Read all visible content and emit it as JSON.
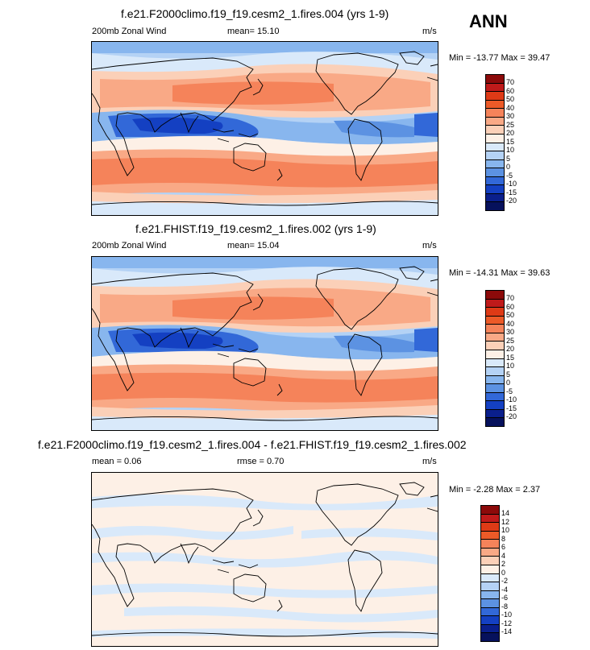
{
  "season": "ANN",
  "panels": [
    {
      "title": "f.e21.F2000climo.f19_f19.cesm2_1.fires.004 (yrs 1-9)",
      "left_label": "200mb Zonal Wind",
      "center_label": "mean=  15.10",
      "units": "m/s",
      "minmax": "Min = -13.77 Max =  39.47"
    },
    {
      "title": "f.e21.FHIST.f19_f19.cesm2_1.fires.002 (yrs 1-9)",
      "left_label": "200mb Zonal Wind",
      "center_label": "mean=  15.04",
      "units": "m/s",
      "minmax": "Min = -14.31 Max =  39.63"
    },
    {
      "title": "f.e21.F2000climo.f19_f19.cesm2_1.fires.004 - f.e21.FHIST.f19_f19.cesm2_1.fires.002",
      "left_label": "mean =  0.06",
      "center_label": "rmse =  0.70",
      "units": "m/s",
      "minmax": "Min =  -2.28 Max =   2.37"
    }
  ],
  "chart_data": [
    {
      "type": "heatmap",
      "variable": "200mb Zonal Wind",
      "units": "m/s",
      "mean": 15.1,
      "min": -13.77,
      "max": 39.47,
      "colorbar_levels": [
        "70",
        "60",
        "50",
        "40",
        "30",
        "25",
        "20",
        "15",
        "10",
        "5",
        "0",
        "-5",
        "-10",
        "-15",
        "-20"
      ],
      "colorbar_colors": [
        "#8c0a0a",
        "#bf1a1a",
        "#de3a16",
        "#ec5a28",
        "#f5835a",
        "#f9a986",
        "#fbd0b8",
        "#fdf0e6",
        "#d9e9fa",
        "#b4d2f5",
        "#88b6ee",
        "#5c92e2",
        "#3268d8",
        "#1440c2",
        "#0a1f8c",
        "#06115c"
      ],
      "lat_profile": [
        [
          90,
          8
        ],
        [
          75,
          10
        ],
        [
          60,
          14
        ],
        [
          50,
          22
        ],
        [
          40,
          28
        ],
        [
          33,
          30
        ],
        [
          25,
          22
        ],
        [
          15,
          5
        ],
        [
          5,
          -6
        ],
        [
          0,
          -8
        ],
        [
          -5,
          -4
        ],
        [
          -15,
          10
        ],
        [
          -25,
          28
        ],
        [
          -32,
          35
        ],
        [
          -40,
          32
        ],
        [
          -50,
          22
        ],
        [
          -60,
          12
        ],
        [
          -75,
          6
        ],
        [
          -90,
          4
        ]
      ]
    },
    {
      "type": "heatmap",
      "variable": "200mb Zonal Wind",
      "units": "m/s",
      "mean": 15.04,
      "min": -14.31,
      "max": 39.63,
      "colorbar_levels": [
        "70",
        "60",
        "50",
        "40",
        "30",
        "25",
        "20",
        "15",
        "10",
        "5",
        "0",
        "-5",
        "-10",
        "-15",
        "-20"
      ],
      "colorbar_colors": [
        "#8c0a0a",
        "#bf1a1a",
        "#de3a16",
        "#ec5a28",
        "#f5835a",
        "#f9a986",
        "#fbd0b8",
        "#fdf0e6",
        "#d9e9fa",
        "#b4d2f5",
        "#88b6ee",
        "#5c92e2",
        "#3268d8",
        "#1440c2",
        "#0a1f8c",
        "#06115c"
      ],
      "lat_profile": [
        [
          90,
          8
        ],
        [
          75,
          10
        ],
        [
          60,
          14
        ],
        [
          50,
          22
        ],
        [
          40,
          28
        ],
        [
          33,
          30
        ],
        [
          25,
          22
        ],
        [
          15,
          5
        ],
        [
          5,
          -6
        ],
        [
          0,
          -8
        ],
        [
          -5,
          -4
        ],
        [
          -15,
          10
        ],
        [
          -25,
          28
        ],
        [
          -32,
          35
        ],
        [
          -40,
          32
        ],
        [
          -50,
          22
        ],
        [
          -60,
          12
        ],
        [
          -75,
          6
        ],
        [
          -90,
          4
        ]
      ]
    },
    {
      "type": "heatmap",
      "variable": "200mb Zonal Wind difference",
      "units": "m/s",
      "mean": 0.06,
      "rmse": 0.7,
      "min": -2.28,
      "max": 2.37,
      "colorbar_levels": [
        "14",
        "12",
        "10",
        "8",
        "6",
        "4",
        "2",
        "0",
        "-2",
        "-4",
        "-6",
        "-8",
        "-10",
        "-12",
        "-14"
      ],
      "colorbar_colors": [
        "#8c0a0a",
        "#bf1a1a",
        "#de3a16",
        "#ec5a28",
        "#f5835a",
        "#f9a986",
        "#fbd0b8",
        "#fdf0e6",
        "#d9e9fa",
        "#b4d2f5",
        "#88b6ee",
        "#5c92e2",
        "#3268d8",
        "#1440c2",
        "#0a1f8c",
        "#06115c"
      ],
      "lat_profile": [
        [
          90,
          0.3
        ],
        [
          60,
          0.4
        ],
        [
          45,
          -0.4
        ],
        [
          30,
          0.3
        ],
        [
          15,
          -0.3
        ],
        [
          0,
          0.4
        ],
        [
          -15,
          -0.4
        ],
        [
          -30,
          0.3
        ],
        [
          -45,
          -0.3
        ],
        [
          -60,
          0.4
        ],
        [
          -90,
          0.2
        ]
      ]
    }
  ]
}
